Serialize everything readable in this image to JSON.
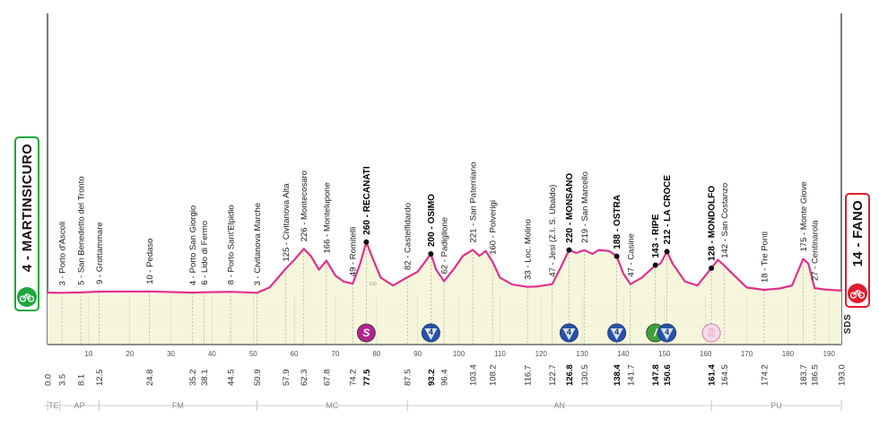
{
  "chart_data": {
    "type": "area",
    "title": "",
    "xlabel": "",
    "ylabel": "",
    "xlim": [
      0,
      193
    ],
    "ylim": [
      0,
      1000
    ],
    "colors": {
      "profile_line": "#e0308f",
      "profile_fill": "#f6f6dc",
      "grid": "#bfbfbf",
      "start": "#1ea73b",
      "finish": "#e01e2d"
    },
    "x_ticks": [
      10,
      20,
      30,
      40,
      50,
      60,
      70,
      80,
      90,
      100,
      110,
      120,
      130,
      140,
      150,
      160,
      170,
      180,
      190
    ],
    "profile": [
      {
        "x": 0,
        "y": 4
      },
      {
        "x": 3.5,
        "y": 3
      },
      {
        "x": 8.1,
        "y": 5
      },
      {
        "x": 12.5,
        "y": 9
      },
      {
        "x": 24.8,
        "y": 10
      },
      {
        "x": 35.2,
        "y": 4
      },
      {
        "x": 38.1,
        "y": 6
      },
      {
        "x": 44.5,
        "y": 8
      },
      {
        "x": 50.9,
        "y": 3
      },
      {
        "x": 54,
        "y": 30
      },
      {
        "x": 57.9,
        "y": 125
      },
      {
        "x": 60,
        "y": 170
      },
      {
        "x": 62.3,
        "y": 226
      },
      {
        "x": 64,
        "y": 190
      },
      {
        "x": 66,
        "y": 120
      },
      {
        "x": 67.8,
        "y": 166
      },
      {
        "x": 70,
        "y": 90
      },
      {
        "x": 72,
        "y": 60
      },
      {
        "x": 74.2,
        "y": 49
      },
      {
        "x": 76,
        "y": 150
      },
      {
        "x": 77.5,
        "y": 260
      },
      {
        "x": 79,
        "y": 180
      },
      {
        "x": 81,
        "y": 80
      },
      {
        "x": 84,
        "y": 40
      },
      {
        "x": 87.5,
        "y": 82
      },
      {
        "x": 90,
        "y": 110
      },
      {
        "x": 93.2,
        "y": 200
      },
      {
        "x": 94.5,
        "y": 120
      },
      {
        "x": 96.4,
        "y": 62
      },
      {
        "x": 99,
        "y": 130
      },
      {
        "x": 101,
        "y": 190
      },
      {
        "x": 103.4,
        "y": 221
      },
      {
        "x": 105,
        "y": 190
      },
      {
        "x": 106.5,
        "y": 215
      },
      {
        "x": 108.2,
        "y": 160
      },
      {
        "x": 110,
        "y": 80
      },
      {
        "x": 113,
        "y": 45
      },
      {
        "x": 116.7,
        "y": 33
      },
      {
        "x": 119,
        "y": 35
      },
      {
        "x": 122.7,
        "y": 47
      },
      {
        "x": 124.5,
        "y": 120
      },
      {
        "x": 126.8,
        "y": 220
      },
      {
        "x": 128.5,
        "y": 205
      },
      {
        "x": 130.5,
        "y": 219
      },
      {
        "x": 132.5,
        "y": 200
      },
      {
        "x": 134,
        "y": 220
      },
      {
        "x": 136.5,
        "y": 215
      },
      {
        "x": 138.4,
        "y": 188
      },
      {
        "x": 140,
        "y": 100
      },
      {
        "x": 141.7,
        "y": 47
      },
      {
        "x": 144.5,
        "y": 80
      },
      {
        "x": 147.8,
        "y": 143
      },
      {
        "x": 149,
        "y": 150
      },
      {
        "x": 150.6,
        "y": 212
      },
      {
        "x": 152,
        "y": 150
      },
      {
        "x": 155,
        "y": 60
      },
      {
        "x": 158,
        "y": 40
      },
      {
        "x": 161.4,
        "y": 128
      },
      {
        "x": 163,
        "y": 170
      },
      {
        "x": 164.5,
        "y": 142
      },
      {
        "x": 167,
        "y": 90
      },
      {
        "x": 170,
        "y": 30
      },
      {
        "x": 174.2,
        "y": 18
      },
      {
        "x": 178,
        "y": 25
      },
      {
        "x": 181,
        "y": 40
      },
      {
        "x": 183.7,
        "y": 175
      },
      {
        "x": 185,
        "y": 150
      },
      {
        "x": 186.5,
        "y": 27
      },
      {
        "x": 189,
        "y": 20
      },
      {
        "x": 193,
        "y": 14
      }
    ],
    "waypoints": [
      {
        "km": "3.5",
        "x": 3.5,
        "label": "3 - Porto d'Ascoli",
        "bold": false
      },
      {
        "km": "8.1",
        "x": 8.1,
        "label": "5 - San Benedetto del Tronto",
        "bold": false
      },
      {
        "km": "12.5",
        "x": 12.5,
        "label": "9 - Grottammare",
        "bold": false
      },
      {
        "km": "24.8",
        "x": 24.8,
        "label": "10 - Pedaso",
        "bold": false
      },
      {
        "km": "35.2",
        "x": 35.2,
        "label": "4 - Porto San Giorgio",
        "bold": false
      },
      {
        "km": "38.1",
        "x": 38.1,
        "label": "6 - Lido di Fermo",
        "bold": false
      },
      {
        "km": "44.5",
        "x": 44.5,
        "label": "8 - Porto Sant'Elpidio",
        "bold": false
      },
      {
        "km": "50.9",
        "x": 50.9,
        "label": "3 - Civitanova Marche",
        "bold": false
      },
      {
        "km": "57.9",
        "x": 57.9,
        "label": "125 - Civitanova Alta",
        "bold": false
      },
      {
        "km": "62.3",
        "x": 62.3,
        "label": "226 - Montecosaro",
        "bold": false
      },
      {
        "km": "67.8",
        "x": 67.8,
        "label": "166 - Montelupone",
        "bold": false
      },
      {
        "km": "74.2",
        "x": 74.2,
        "label": "49 - Romitelli",
        "bold": false
      },
      {
        "km": "77.5",
        "x": 77.5,
        "label": "260 - RECANATI",
        "bold": true,
        "dot": true
      },
      {
        "km": "87.5",
        "x": 87.5,
        "label": "82 - Castelfidardo",
        "bold": false
      },
      {
        "km": "93.2",
        "x": 93.2,
        "label": "200 - OSIMO",
        "bold": true,
        "dot": true
      },
      {
        "km": "96.4",
        "x": 96.4,
        "label": "62 - Padiglione",
        "bold": false
      },
      {
        "km": "103.4",
        "x": 103.4,
        "label": "221 - San Paterniano",
        "bold": false
      },
      {
        "km": "108.2",
        "x": 108.2,
        "label": "160 - Polverigi",
        "bold": false
      },
      {
        "km": "116.7",
        "x": 116.7,
        "label": "33 - Loc. Molino",
        "bold": false
      },
      {
        "km": "122.7",
        "x": 122.7,
        "label": "47 - Jesi (Z.I. S. Ubaldo)",
        "bold": false
      },
      {
        "km": "126.8",
        "x": 126.8,
        "label": "220 - MONSANO",
        "bold": true,
        "dot": true
      },
      {
        "km": "130.5",
        "x": 130.5,
        "label": "219 - San Marcello",
        "bold": false
      },
      {
        "km": "138.4",
        "x": 138.4,
        "label": "188 - OSTRA",
        "bold": true,
        "dot": true
      },
      {
        "km": "141.7",
        "x": 141.7,
        "label": "47 - Casine",
        "bold": false
      },
      {
        "km": "147.8",
        "x": 147.8,
        "label": "143 - RIPE",
        "bold": true,
        "dot": true
      },
      {
        "km": "150.6",
        "x": 150.6,
        "label": "212 - LA CROCE",
        "bold": true,
        "dot": true
      },
      {
        "km": "161.4",
        "x": 161.4,
        "label": "128 - MONDOLFO",
        "bold": true,
        "dot": true
      },
      {
        "km": "164.5",
        "x": 164.5,
        "label": "142 - San Costanzo",
        "bold": false
      },
      {
        "km": "174.2",
        "x": 174.2,
        "label": "18 - Tre Ponti",
        "bold": false
      },
      {
        "km": "183.7",
        "x": 183.7,
        "label": "175 - Monte Giove",
        "bold": false
      },
      {
        "km": "186.5",
        "x": 186.5,
        "label": "27 - Centinarola",
        "bold": false
      }
    ],
    "end_km": [
      {
        "km": "0.0",
        "x": 0
      },
      {
        "km": "193.0",
        "x": 193
      }
    ],
    "markers": [
      {
        "type": "sprint",
        "x": 77.5,
        "symbol": "S",
        "color": "#b3238f",
        "shape": "circle"
      },
      {
        "type": "km4",
        "x": 93.2,
        "symbol": "4",
        "color": "#2a52a8",
        "shape": "circle-tri"
      },
      {
        "type": "km4",
        "x": 126.8,
        "symbol": "4",
        "color": "#2a52a8",
        "shape": "circle-tri"
      },
      {
        "type": "km4",
        "x": 138.4,
        "symbol": "4",
        "color": "#2a52a8",
        "shape": "circle-tri"
      },
      {
        "type": "feed",
        "x": 147.8,
        "symbol": "/",
        "color": "#3ea03a",
        "shape": "circle"
      },
      {
        "type": "km4",
        "x": 150.6,
        "symbol": "4",
        "color": "#2a52a8",
        "shape": "circle-tri"
      },
      {
        "type": "sprint2",
        "x": 161.4,
        "symbol": "S",
        "color": "#e8a2c3",
        "shape": "circle-light"
      }
    ],
    "altitude_ticks": [
      {
        "x": 77.5,
        "label": "100"
      }
    ],
    "regions": [
      {
        "name": "TE",
        "from": 0,
        "to": 3
      },
      {
        "name": "AP",
        "from": 3,
        "to": 12.5
      },
      {
        "name": "FM",
        "from": 12.5,
        "to": 50.9
      },
      {
        "name": "MC",
        "from": 50.9,
        "to": 87.5
      },
      {
        "name": "AN",
        "from": 87.5,
        "to": 161.4
      },
      {
        "name": "PU",
        "from": 161.4,
        "to": 193
      }
    ]
  },
  "start": {
    "label": "4 - MARTINSICURO",
    "icon": "bicycle-icon"
  },
  "finish": {
    "label": "14 - FANO",
    "icon": "bicycle-icon"
  },
  "logo": {
    "text": "SDS"
  }
}
